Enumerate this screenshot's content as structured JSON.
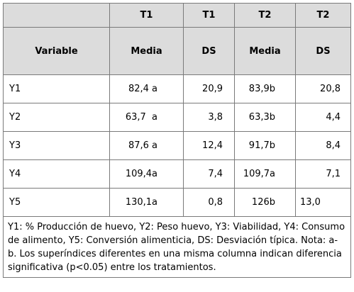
{
  "table": {
    "header_top": [
      "",
      "T1",
      "T1",
      "T2",
      "T2"
    ],
    "header_sub": [
      "Variable",
      "Media",
      "DS",
      "Media",
      "DS"
    ],
    "rows": [
      [
        "Y1",
        "82,4 a",
        "20,9",
        "83,9b",
        "20,8"
      ],
      [
        "Y2",
        "63,7  a",
        "3,8",
        "63,3b",
        "4,4"
      ],
      [
        "Y3",
        "87,6 a",
        "12,4",
        "91,7b",
        "8,4"
      ],
      [
        "Y4",
        "109,4a",
        "7,4",
        "109,7a",
        "7,1"
      ],
      [
        "Y5",
        "130,1a",
        "0,8",
        "126b",
        "13,0"
      ]
    ],
    "note": "Y1: % Producción de huevo, Y2: Peso huevo, Y3: Viabilidad, Y4: Consumo de alimento, Y5: Conversión alimenticia,  DS: Desviación típica. Nota: a-b. Los superíndices diferentes en una misma columna indican diferencia significativa (p<0.05) entre los tratamientos."
  }
}
